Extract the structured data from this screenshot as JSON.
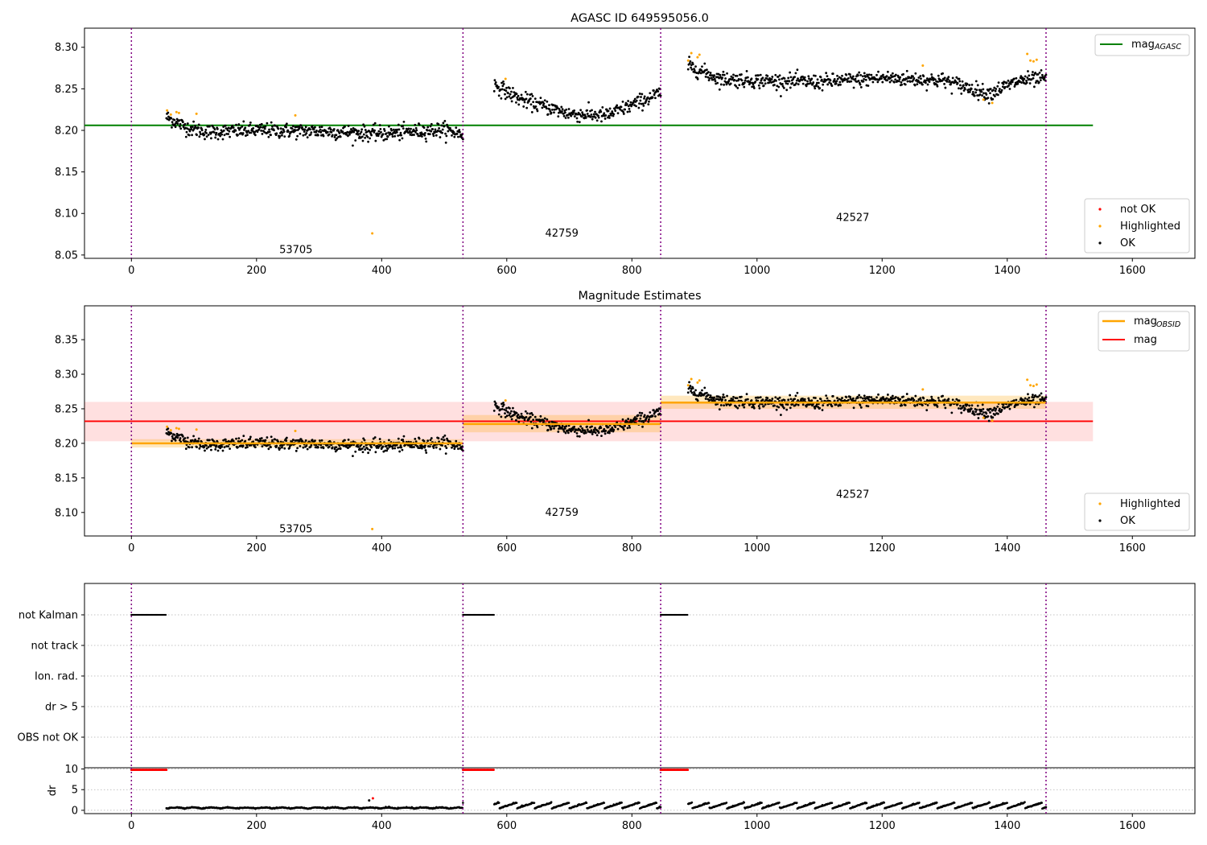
{
  "chart_data": [
    {
      "type": "scatter",
      "title": "AGASC ID 649595056.0",
      "xlabel": "",
      "ylabel": "",
      "xlim": [
        -75,
        1700
      ],
      "ylim": [
        8.046,
        8.323
      ],
      "xticks": [
        0,
        200,
        400,
        600,
        800,
        1000,
        1200,
        1400,
        1600
      ],
      "yticks": [
        8.05,
        8.1,
        8.15,
        8.2,
        8.25,
        8.3
      ],
      "grid": false,
      "obsid_boundaries": [
        0,
        530,
        846,
        1462
      ],
      "obsid_labels": [
        {
          "text": "53705",
          "x": 263,
          "y": 8.057
        },
        {
          "text": "42759",
          "x": 688,
          "y": 8.077
        },
        {
          "text": "42527",
          "x": 1153,
          "y": 8.096
        }
      ],
      "reference_lines": [
        {
          "name": "mag_AGASC",
          "y": 8.206,
          "x_range": [
            -75,
            1537
          ],
          "color": "#008000"
        }
      ],
      "legend_upper": {
        "position": "upper right",
        "entries": [
          {
            "label_base": "mag",
            "label_sub": "AGASC",
            "color": "#008000"
          }
        ]
      },
      "legend_lower": {
        "position": "lower right",
        "entries": [
          {
            "label": "not OK",
            "color": "#ff0000"
          },
          {
            "label": "Highlighted",
            "color": "#ffa500"
          },
          {
            "label": "OK",
            "color": "#000000"
          }
        ]
      },
      "highlighted_points": [
        {
          "x": 57,
          "y": 8.224
        },
        {
          "x": 63,
          "y": 8.219
        },
        {
          "x": 72,
          "y": 8.222
        },
        {
          "x": 76,
          "y": 8.221
        },
        {
          "x": 104,
          "y": 8.22
        },
        {
          "x": 262,
          "y": 8.218
        },
        {
          "x": 385,
          "y": 8.076
        },
        {
          "x": 598,
          "y": 8.262
        },
        {
          "x": 890,
          "y": 8.284
        },
        {
          "x": 895,
          "y": 8.293
        },
        {
          "x": 905,
          "y": 8.288
        },
        {
          "x": 908,
          "y": 8.291
        },
        {
          "x": 1265,
          "y": 8.278
        },
        {
          "x": 1362,
          "y": 8.237
        },
        {
          "x": 1376,
          "y": 8.233
        },
        {
          "x": 1432,
          "y": 8.292
        },
        {
          "x": 1437,
          "y": 8.284
        },
        {
          "x": 1442,
          "y": 8.283
        },
        {
          "x": 1447,
          "y": 8.285
        }
      ],
      "ok_series": [
        {
          "x_range": [
            56,
            530
          ],
          "trend": [
            [
              56,
              8.216
            ],
            [
              90,
              8.203
            ],
            [
              120,
              8.198
            ],
            [
              200,
              8.2
            ],
            [
              300,
              8.199
            ],
            [
              400,
              8.196
            ],
            [
              500,
              8.201
            ],
            [
              530,
              8.195
            ]
          ],
          "scatter": 0.006
        },
        {
          "x_range": [
            580,
            846
          ],
          "trend": [
            [
              580,
              8.255
            ],
            [
              620,
              8.238
            ],
            [
              700,
              8.22
            ],
            [
              760,
              8.218
            ],
            [
              846,
              8.245
            ]
          ],
          "scatter": 0.006
        },
        {
          "x_range": [
            890,
            1462
          ],
          "trend": [
            [
              890,
              8.278
            ],
            [
              940,
              8.262
            ],
            [
              1000,
              8.26
            ],
            [
              1100,
              8.258
            ],
            [
              1200,
              8.263
            ],
            [
              1300,
              8.26
            ],
            [
              1370,
              8.244
            ],
            [
              1420,
              8.26
            ],
            [
              1462,
              8.262
            ]
          ],
          "scatter": 0.006
        }
      ]
    },
    {
      "type": "scatter",
      "title": "Magnitude Estimates",
      "xlim": [
        -75,
        1700
      ],
      "ylim": [
        8.066,
        8.399
      ],
      "xticks": [
        0,
        200,
        400,
        600,
        800,
        1000,
        1200,
        1400,
        1600
      ],
      "yticks": [
        8.1,
        8.15,
        8.2,
        8.25,
        8.3,
        8.35
      ],
      "grid": false,
      "obsid_boundaries": [
        0,
        530,
        846,
        1462
      ],
      "obsid_labels": [
        {
          "text": "53705",
          "x": 263,
          "y": 8.077
        },
        {
          "text": "42759",
          "x": 688,
          "y": 8.101
        },
        {
          "text": "42527",
          "x": 1153,
          "y": 8.127
        }
      ],
      "mag_line": {
        "name": "mag",
        "y": 8.232,
        "band": [
          8.203,
          8.26
        ],
        "x_range": [
          -75,
          1537
        ],
        "color": "#ff0000"
      },
      "mag_obsid_segments": [
        {
          "x_range": [
            0,
            530
          ],
          "y": 8.2,
          "band": [
            8.194,
            8.206
          ]
        },
        {
          "x_range": [
            530,
            846
          ],
          "y": 8.228,
          "band": [
            8.216,
            8.241
          ]
        },
        {
          "x_range": [
            846,
            1462
          ],
          "y": 8.259,
          "band": [
            8.25,
            8.269
          ]
        }
      ],
      "legend_upper": {
        "position": "upper right",
        "entries": [
          {
            "label_base": "mag",
            "label_sub": "OBSID",
            "color": "#ffa500"
          },
          {
            "label": "mag",
            "color": "#ff0000"
          }
        ]
      },
      "legend_lower": {
        "position": "lower right",
        "entries": [
          {
            "label": "Highlighted",
            "color": "#ffa500"
          },
          {
            "label": "OK",
            "color": "#000000"
          }
        ]
      }
    },
    {
      "type": "scatter",
      "title": "",
      "xlim": [
        -75,
        1700
      ],
      "xticks": [
        0,
        200,
        400,
        600,
        800,
        1000,
        1200,
        1400,
        1600
      ],
      "flag_rows": [
        "not Kalman",
        "not track",
        "Ion. rad.",
        "dr > 5",
        "OBS not OK"
      ],
      "flag_not_kalman_ranges": [
        [
          0,
          56
        ],
        [
          530,
          580
        ],
        [
          846,
          890
        ]
      ],
      "obsid_boundaries": [
        0,
        530,
        846,
        1462
      ]
    },
    {
      "type": "scatter",
      "title": "",
      "ylabel": "dr",
      "xlim": [
        -75,
        1700
      ],
      "ylim": [
        -0.8,
        10.3
      ],
      "yticks": [
        0,
        5,
        10
      ],
      "xticks": [
        0,
        200,
        400,
        600,
        800,
        1000,
        1200,
        1400,
        1600
      ],
      "grid": true,
      "dr_clipped_ranges": [
        [
          0,
          56
        ],
        [
          530,
          580
        ],
        [
          846,
          890
        ]
      ],
      "dr_clipped_value": 9.8,
      "dr_outliers": [
        {
          "x": 380,
          "y": 2.4,
          "color": "#000000"
        },
        {
          "x": 386,
          "y": 2.9,
          "color": "#ff0000"
        }
      ],
      "obsid_boundaries": [
        0,
        530,
        846,
        1462
      ]
    }
  ]
}
